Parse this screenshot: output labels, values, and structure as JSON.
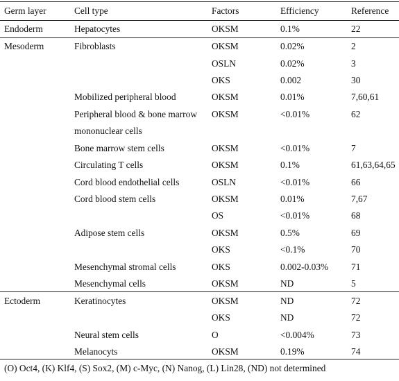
{
  "table": {
    "headers": [
      "Germ layer",
      "Cell type",
      "Factors",
      "Efficiency",
      "Reference"
    ],
    "rows": [
      [
        "Endoderm",
        "Hepatocytes",
        "OKSM",
        "0.1%",
        "22"
      ],
      [
        "Mesoderm",
        "Fibroblasts",
        "OKSM",
        "0.02%",
        "2"
      ],
      [
        "",
        "",
        "OSLN",
        "0.02%",
        "3"
      ],
      [
        "",
        "",
        "OKS",
        "0.002",
        "30"
      ],
      [
        "",
        "Mobilized peripheral blood",
        "OKSM",
        "0.01%",
        "7,60,61"
      ],
      [
        "",
        "Peripheral blood & bone marrow",
        "OKSM",
        "<0.01%",
        "62"
      ],
      [
        "",
        "mononuclear cells",
        "",
        "",
        ""
      ],
      [
        "",
        "Bone marrow stem cells",
        "OKSM",
        "<0.01%",
        "7"
      ],
      [
        "",
        "Circulating T cells",
        "OKSM",
        "0.1%",
        "61,63,64,65"
      ],
      [
        "",
        "Cord blood endothelial cells",
        "OSLN",
        "<0.01%",
        "66"
      ],
      [
        "",
        "Cord blood stem cells",
        "OKSM",
        "0.01%",
        "7,67"
      ],
      [
        "",
        "",
        "OS",
        "<0.01%",
        "68"
      ],
      [
        "",
        "Adipose stem cells",
        "OKSM",
        "0.5%",
        "69"
      ],
      [
        "",
        "",
        "OKS",
        "<0.1%",
        "70"
      ],
      [
        "",
        "Mesenchymal stromal cells",
        "OKS",
        "0.002-0.03%",
        "71"
      ],
      [
        "",
        "Mesenchymal cells",
        "OKSM",
        "ND",
        "5"
      ],
      [
        "Ectoderm",
        "Keratinocytes",
        "OKSM",
        "ND",
        "72"
      ],
      [
        "",
        "",
        "OKS",
        "ND",
        "72"
      ],
      [
        "",
        "Neural stem cells",
        "O",
        "<0.004%",
        "73"
      ],
      [
        "",
        "Melanocyts",
        "OKSM",
        "0.19%",
        "74"
      ]
    ]
  },
  "footnote": "(O) Oct4, (K) Klf4, (S) Sox2, (M) c-Myc, (N) Nanog, (L) Lin28, (ND) not determined"
}
